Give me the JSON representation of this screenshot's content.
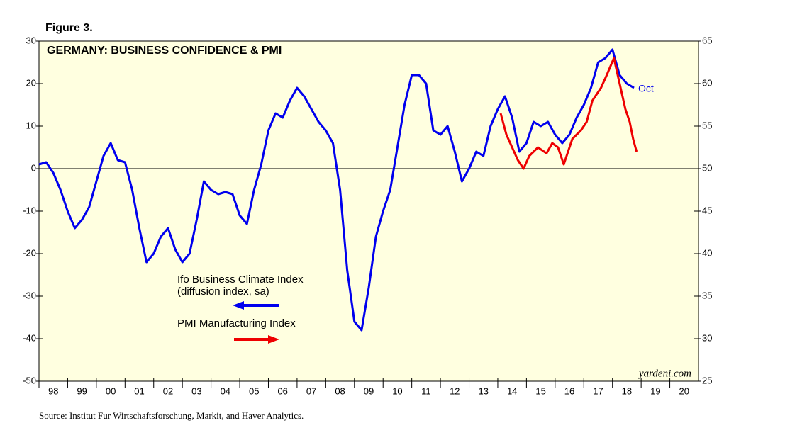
{
  "chart_data": {
    "type": "line",
    "figure_label": "Figure 3.",
    "title": "GERMANY: BUSINESS CONFIDENCE & PMI",
    "legend_note": "(diffusion index, sa)",
    "end_label": "Oct",
    "watermark": "yardeni.com",
    "source": "Source:  Institut Fur Wirtschaftsforschung, Markit, and Haver Analytics.",
    "xlim": [
      1998,
      2021
    ],
    "xticks": [
      {
        "value": 1998,
        "label": "98"
      },
      {
        "value": 1999,
        "label": "99"
      },
      {
        "value": 2000,
        "label": "00"
      },
      {
        "value": 2001,
        "label": "01"
      },
      {
        "value": 2002,
        "label": "02"
      },
      {
        "value": 2003,
        "label": "03"
      },
      {
        "value": 2004,
        "label": "04"
      },
      {
        "value": 2005,
        "label": "05"
      },
      {
        "value": 2006,
        "label": "06"
      },
      {
        "value": 2007,
        "label": "07"
      },
      {
        "value": 2008,
        "label": "08"
      },
      {
        "value": 2009,
        "label": "09"
      },
      {
        "value": 2010,
        "label": "10"
      },
      {
        "value": 2011,
        "label": "11"
      },
      {
        "value": 2012,
        "label": "12"
      },
      {
        "value": 2013,
        "label": "13"
      },
      {
        "value": 2014,
        "label": "14"
      },
      {
        "value": 2015,
        "label": "15"
      },
      {
        "value": 2016,
        "label": "16"
      },
      {
        "value": 2017,
        "label": "17"
      },
      {
        "value": 2018,
        "label": "18"
      },
      {
        "value": 2019,
        "label": "19"
      },
      {
        "value": 2020,
        "label": "20"
      }
    ],
    "ylim": [
      -50,
      30
    ],
    "yticks": [
      -50,
      -40,
      -30,
      -20,
      -10,
      0,
      10,
      20,
      30
    ],
    "y2lim": [
      25,
      65
    ],
    "y2ticks": [
      25,
      30,
      35,
      40,
      45,
      50,
      55,
      60,
      65
    ],
    "series": [
      {
        "name": "Ifo Business Climate Index",
        "color": "#0000ee",
        "axis": "y",
        "x": [
          1998,
          1998.25,
          1998.5,
          1998.75,
          1999,
          1999.25,
          1999.5,
          1999.75,
          2000,
          2000.25,
          2000.5,
          2000.75,
          2001,
          2001.25,
          2001.5,
          2001.75,
          2002,
          2002.25,
          2002.5,
          2002.75,
          2003,
          2003.25,
          2003.5,
          2003.75,
          2004,
          2004.25,
          2004.5,
          2004.75,
          2005,
          2005.25,
          2005.5,
          2005.75,
          2006,
          2006.25,
          2006.5,
          2006.75,
          2007,
          2007.25,
          2007.5,
          2007.75,
          2008,
          2008.25,
          2008.5,
          2008.75,
          2009,
          2009.25,
          2009.5,
          2009.75,
          2010,
          2010.25,
          2010.5,
          2010.75,
          2011,
          2011.25,
          2011.5,
          2011.75,
          2012,
          2012.25,
          2012.5,
          2012.75,
          2013,
          2013.25,
          2013.5,
          2013.75,
          2014,
          2014.25,
          2014.5,
          2014.75,
          2015,
          2015.25,
          2015.5,
          2015.75,
          2016,
          2016.25,
          2016.5,
          2016.75,
          2017,
          2017.25,
          2017.5,
          2017.75,
          2018,
          2018.25,
          2018.5,
          2018.75
        ],
        "values": [
          1,
          1.5,
          -1,
          -5,
          -10,
          -14,
          -12,
          -9,
          -3,
          3,
          6,
          2,
          1.5,
          -5,
          -14,
          -22,
          -20,
          -16,
          -14,
          -19,
          -22,
          -20,
          -12,
          -3,
          -5,
          -6,
          -5.5,
          -6,
          -11,
          -13,
          -5,
          1,
          9,
          13,
          12,
          16,
          19,
          17,
          14,
          11,
          9,
          6,
          -5,
          -24,
          -36,
          -38,
          -28,
          -16,
          -10,
          -5,
          5,
          15,
          22,
          22,
          20,
          9,
          8,
          10,
          4,
          -3,
          0,
          4,
          3,
          10,
          14,
          17,
          12,
          4,
          6,
          11,
          10,
          11,
          8,
          6,
          8,
          12,
          15,
          19,
          25,
          26,
          28,
          22,
          20,
          19
        ]
      },
      {
        "name": "PMI Manufacturing Index",
        "color": "#ee0000",
        "axis": "y2",
        "x": [
          2014.1,
          2014.3,
          2014.5,
          2014.7,
          2014.9,
          2015.1,
          2015.4,
          2015.7,
          2015.9,
          2016.1,
          2016.3,
          2016.6,
          2016.9,
          2017.1,
          2017.3,
          2017.6,
          2017.8,
          2018.05,
          2018.25,
          2018.45,
          2018.6,
          2018.72,
          2018.84
        ],
        "values": [
          56.5,
          54,
          52.5,
          51,
          50,
          51.5,
          52.5,
          51.8,
          53,
          52.5,
          50.5,
          53.5,
          54.5,
          55.5,
          58,
          59.5,
          61,
          63,
          60,
          57,
          55.5,
          53.5,
          52
        ]
      }
    ]
  }
}
